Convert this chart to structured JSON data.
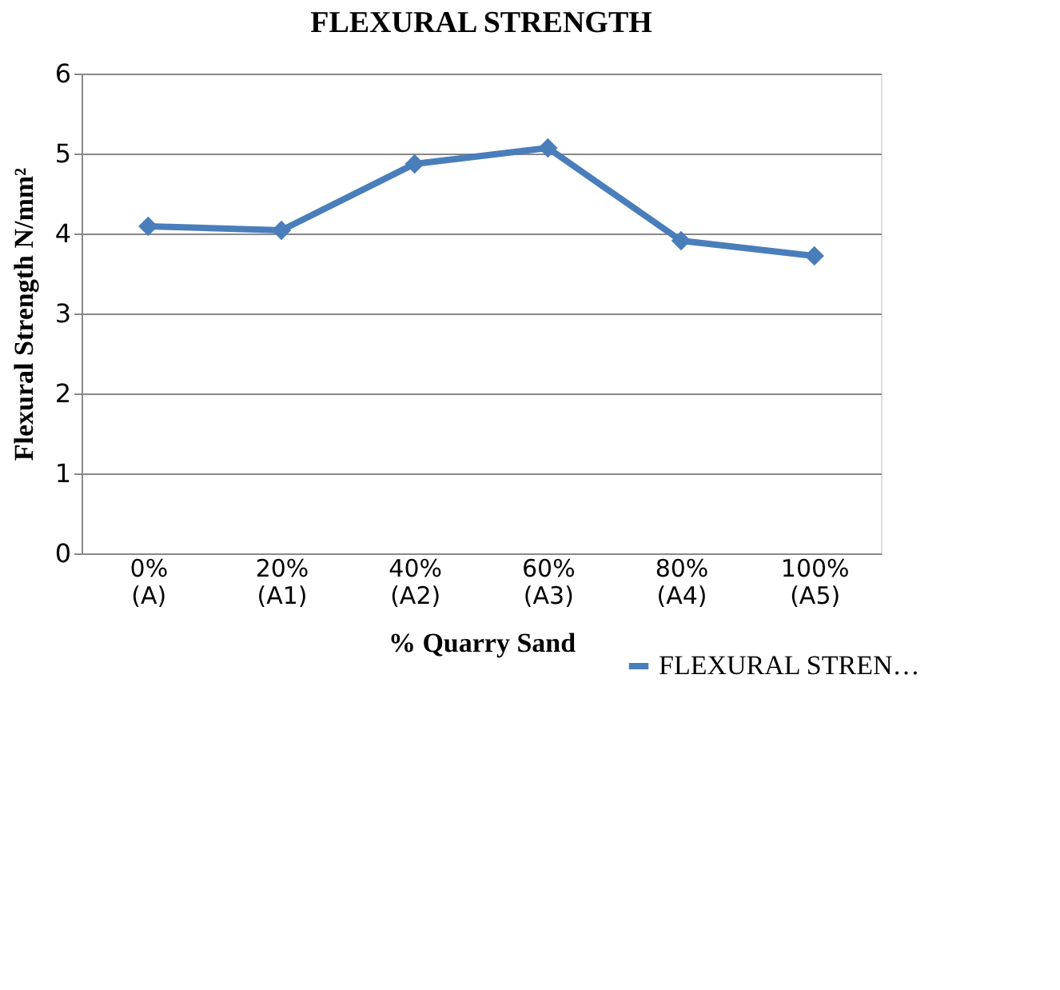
{
  "chart_data": {
    "type": "line",
    "title": "FLEXURAL STRENGTH",
    "xlabel": "% Quarry Sand",
    "ylabel": "Flexural Strength N/mm²",
    "categories": [
      "0% (A)",
      "20% (A1)",
      "40% (A2)",
      "60% (A3)",
      "80% (A4)",
      "100% (A5)"
    ],
    "series": [
      {
        "name": "FLEXURAL STREN…",
        "color": "#4a7ebb",
        "values": [
          4.09,
          4.04,
          4.87,
          5.07,
          3.91,
          3.72
        ]
      }
    ],
    "ylim": [
      0,
      6
    ],
    "yticks": [
      0,
      1,
      2,
      3,
      4,
      5,
      6
    ],
    "grid": "y",
    "legend": "bottom right",
    "marker": "diamond",
    "line_style": "solid"
  }
}
